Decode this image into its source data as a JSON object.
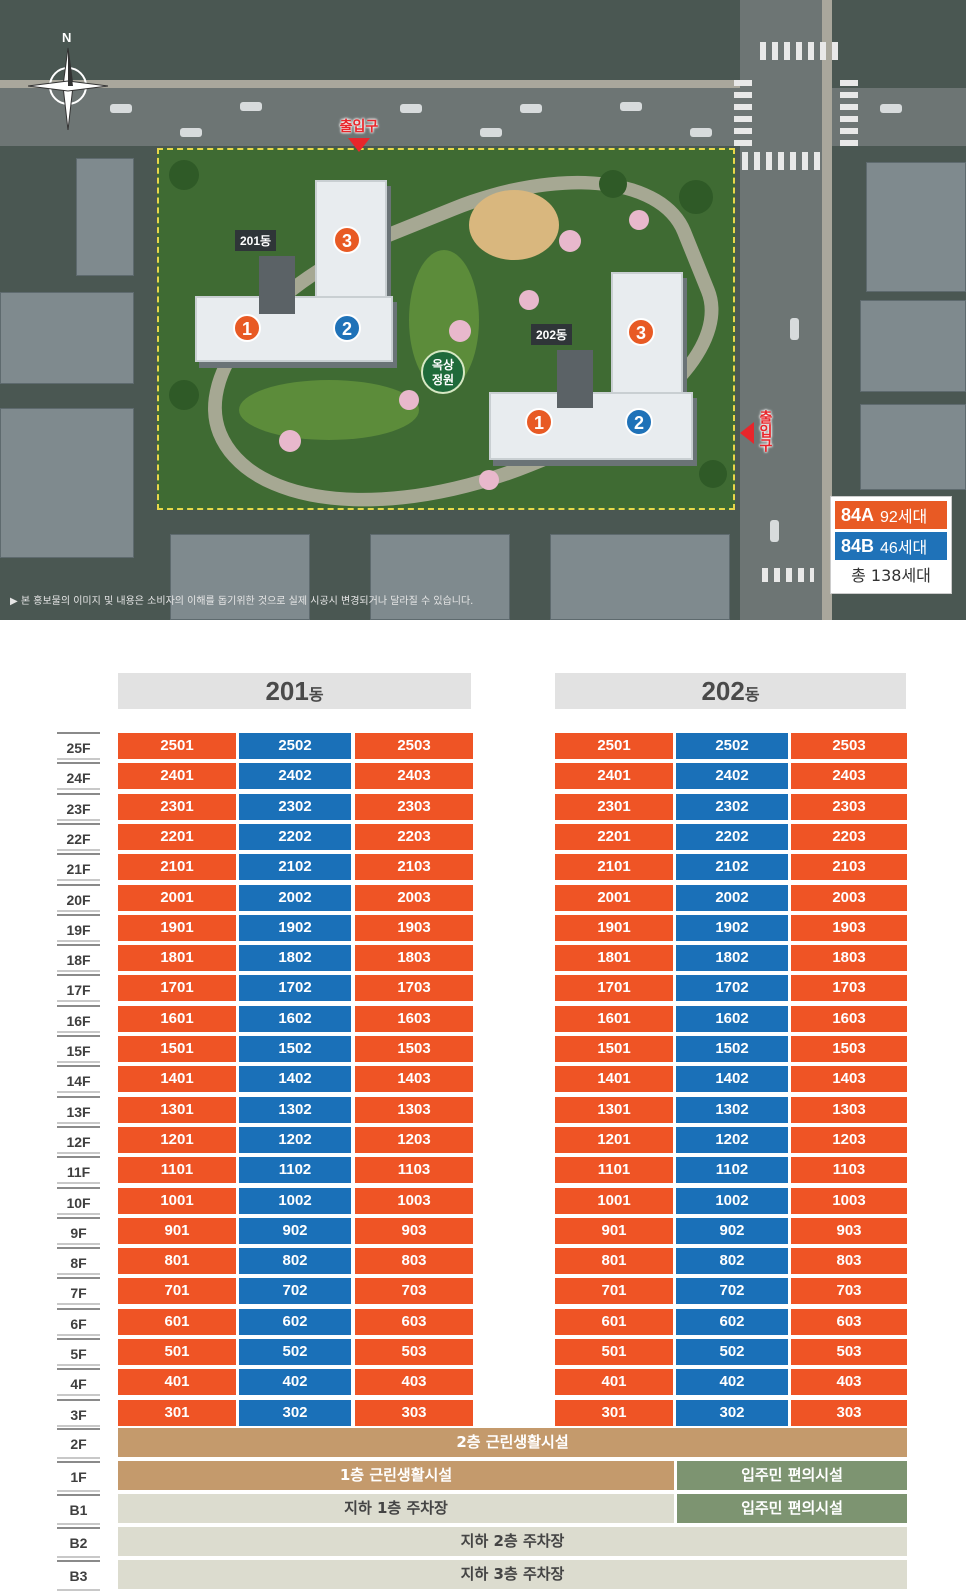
{
  "site_plan": {
    "compass_label": "N",
    "entrance_top": "출입구",
    "entrance_right": "출입구",
    "rooftop_garden": [
      "옥상",
      "정원"
    ],
    "building_201_label": "201동",
    "building_202_label": "202동",
    "wing_tags": [
      "1",
      "2",
      "3"
    ],
    "disclaimer": "▶ 본 홍보물의 이미지 및 내용은 소비자의 이해를 돕기위한 것으로 실제 시공시 변경되거나 달라질 수 있습니다.",
    "legend": {
      "rows": [
        {
          "type": "84A",
          "count": "92세대",
          "color": "#e85a24"
        },
        {
          "type": "84B",
          "count": "46세대",
          "color": "#1f72b8"
        }
      ],
      "total": "총 138세대"
    }
  },
  "unit_table": {
    "colors": {
      "84A": "#ef5425",
      "84B": "#1a70b8"
    },
    "buildings": [
      {
        "num": "201",
        "suffix": "동"
      },
      {
        "num": "202",
        "suffix": "동"
      }
    ],
    "floors": [
      "25F",
      "24F",
      "23F",
      "22F",
      "21F",
      "20F",
      "19F",
      "18F",
      "17F",
      "16F",
      "15F",
      "14F",
      "13F",
      "12F",
      "11F",
      "10F",
      "9F",
      "8F",
      "7F",
      "6F",
      "5F",
      "4F",
      "3F"
    ],
    "units": {
      "25F": [
        "2501",
        "2502",
        "2503"
      ],
      "24F": [
        "2401",
        "2402",
        "2403"
      ],
      "23F": [
        "2301",
        "2302",
        "2303"
      ],
      "22F": [
        "2201",
        "2202",
        "2203"
      ],
      "21F": [
        "2101",
        "2102",
        "2103"
      ],
      "20F": [
        "2001",
        "2002",
        "2003"
      ],
      "19F": [
        "1901",
        "1902",
        "1903"
      ],
      "18F": [
        "1801",
        "1802",
        "1803"
      ],
      "17F": [
        "1701",
        "1702",
        "1703"
      ],
      "16F": [
        "1601",
        "1602",
        "1603"
      ],
      "15F": [
        "1501",
        "1502",
        "1503"
      ],
      "14F": [
        "1401",
        "1402",
        "1403"
      ],
      "13F": [
        "1301",
        "1302",
        "1303"
      ],
      "12F": [
        "1201",
        "1202",
        "1203"
      ],
      "11F": [
        "1101",
        "1102",
        "1103"
      ],
      "10F": [
        "1001",
        "1002",
        "1003"
      ],
      "9F": [
        "901",
        "902",
        "903"
      ],
      "8F": [
        "801",
        "802",
        "803"
      ],
      "7F": [
        "701",
        "702",
        "703"
      ],
      "6F": [
        "601",
        "602",
        "603"
      ],
      "5F": [
        "501",
        "502",
        "503"
      ],
      "4F": [
        "401",
        "402",
        "403"
      ],
      "3F": [
        "301",
        "302",
        "303"
      ]
    },
    "unit_types": [
      "84A",
      "84B",
      "84A"
    ],
    "lower_floors": [
      {
        "floor": "2F",
        "main": "2층 근린생활시설",
        "side": ""
      },
      {
        "floor": "1F",
        "main": "1층 근린생활시설",
        "side": "입주민 편의시설"
      },
      {
        "floor": "B1",
        "main": "지하 1층 주차장",
        "side": "입주민 편의시설"
      },
      {
        "floor": "B2",
        "main": "지하 2층 주차장",
        "side": ""
      },
      {
        "floor": "B3",
        "main": "지하 3층 주차장",
        "side": ""
      }
    ]
  }
}
